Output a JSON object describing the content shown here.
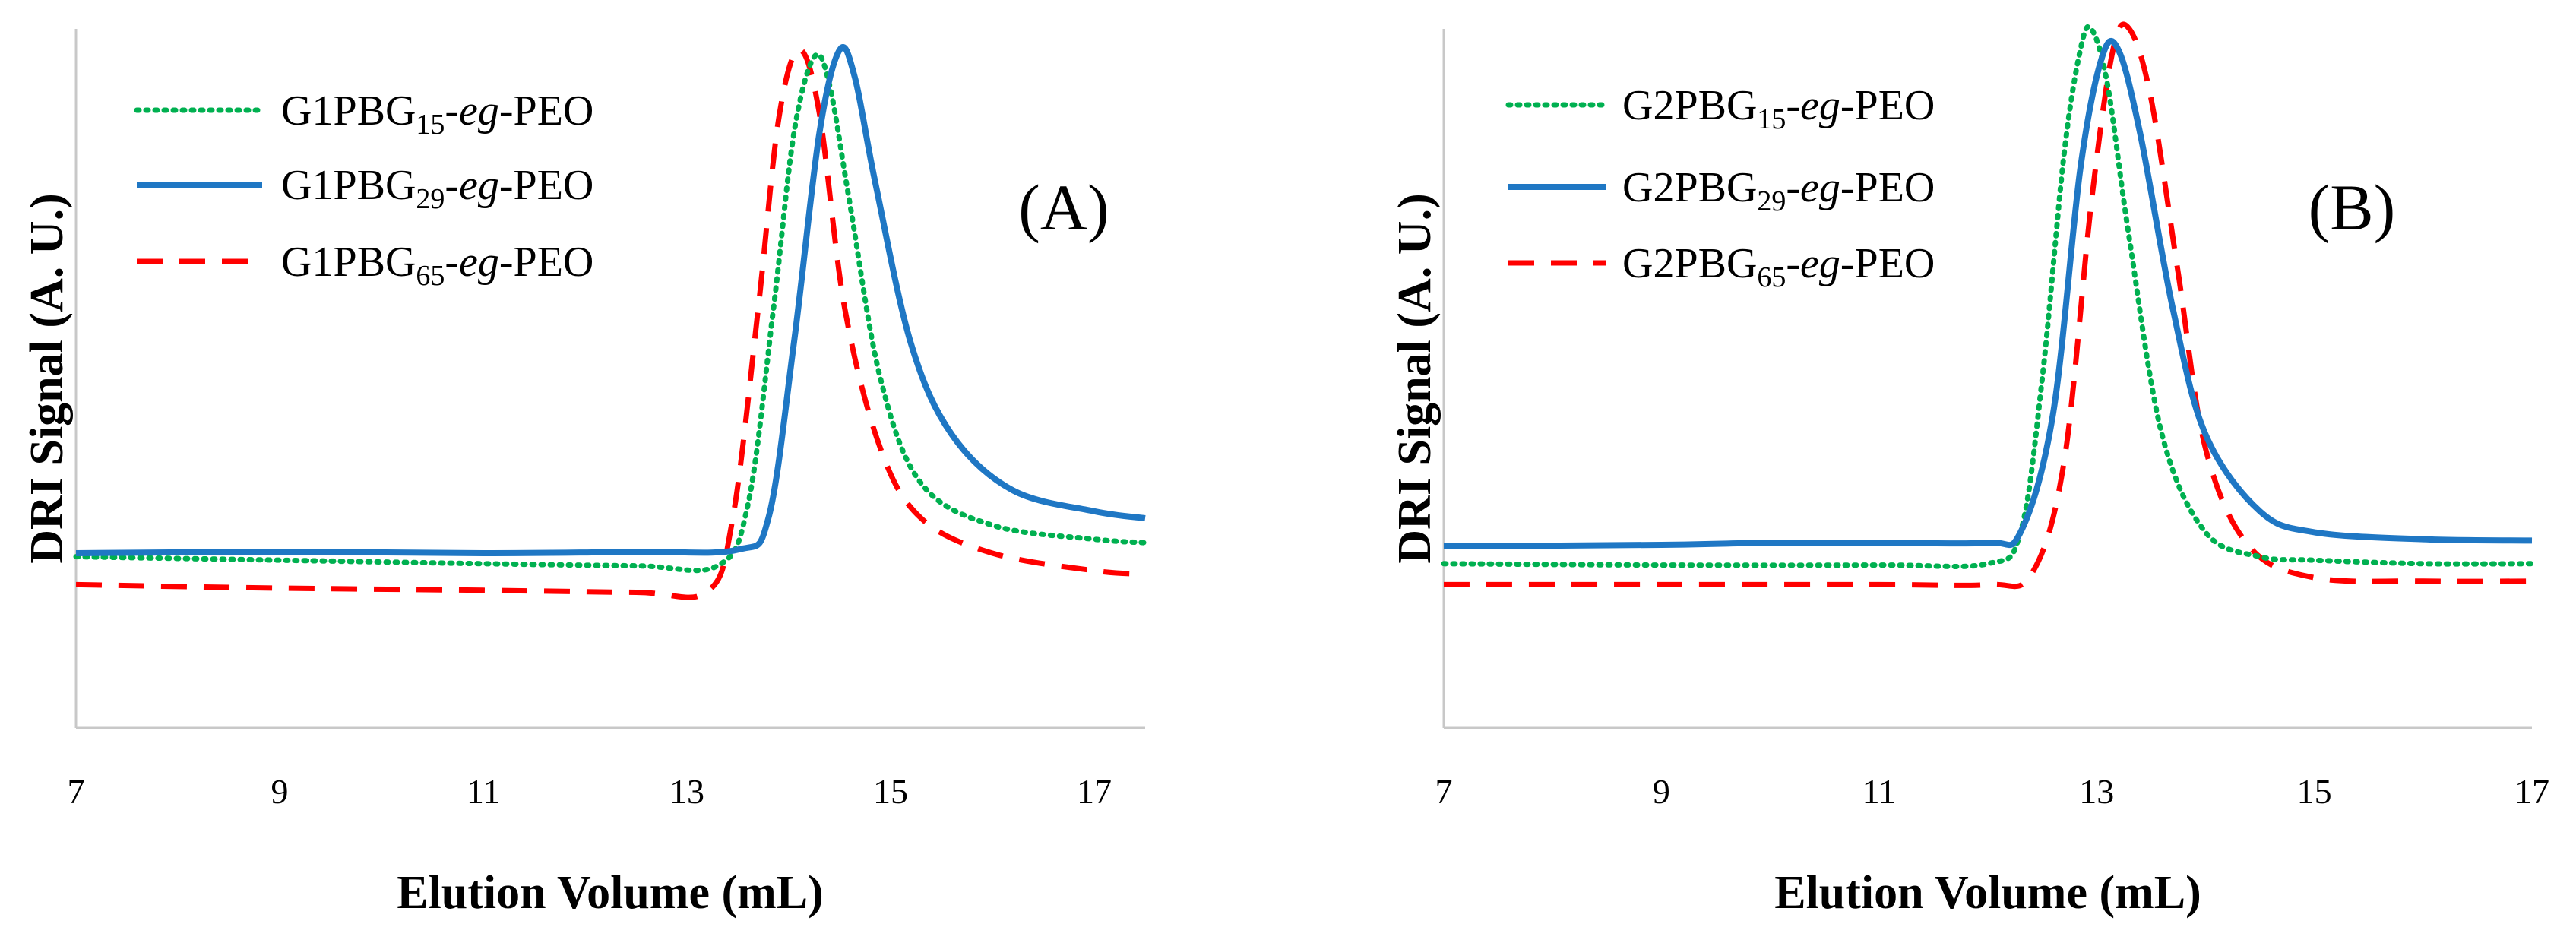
{
  "chart_data": [
    {
      "type": "line",
      "panel_label": "(A)",
      "xlabel": "Elution Volume (mL)",
      "ylabel": "DRI Signal (A. U.)",
      "xlim": [
        7,
        17.5
      ],
      "ylim": [
        0,
        1
      ],
      "xticks": [
        7,
        9,
        11,
        13,
        15,
        17
      ],
      "legend_position": "top-left",
      "series": [
        {
          "name": "G1PBG15-eg-PEO",
          "label_prefix": "G1PBG",
          "label_sub": "15",
          "label_italic": "eg",
          "label_suffix": "-PEO",
          "color": "#00b050",
          "style": "dotted",
          "x": [
            7,
            9,
            11,
            12.5,
            13.3,
            13.6,
            13.85,
            14.05,
            14.25,
            14.4,
            14.6,
            14.9,
            15.3,
            16,
            17,
            17.5
          ],
          "y": [
            0.245,
            0.24,
            0.235,
            0.232,
            0.232,
            0.32,
            0.6,
            0.85,
            0.96,
            0.92,
            0.75,
            0.5,
            0.35,
            0.29,
            0.27,
            0.265
          ]
        },
        {
          "name": "G1PBG29-eg-PEO",
          "label_prefix": "G1PBG",
          "label_sub": "29",
          "label_italic": "eg",
          "label_suffix": "-PEO",
          "color": "#1f77c4",
          "style": "solid",
          "x": [
            7,
            9,
            11,
            12.5,
            13.5,
            13.8,
            14.05,
            14.3,
            14.5,
            14.65,
            14.85,
            15.2,
            15.6,
            16.2,
            17,
            17.5
          ],
          "y": [
            0.25,
            0.252,
            0.25,
            0.252,
            0.255,
            0.3,
            0.55,
            0.85,
            0.97,
            0.93,
            0.78,
            0.55,
            0.42,
            0.34,
            0.31,
            0.3
          ]
        },
        {
          "name": "G1PBG65-eg-PEO",
          "label_prefix": "G1PBG",
          "label_sub": "65",
          "label_italic": "eg",
          "label_suffix": "-PEO",
          "color": "#ff0000",
          "style": "dashed",
          "x": [
            7,
            9,
            11,
            12.5,
            13.2,
            13.45,
            13.7,
            13.9,
            14.1,
            14.3,
            14.55,
            14.9,
            15.3,
            16,
            17,
            17.5
          ],
          "y": [
            0.205,
            0.2,
            0.197,
            0.194,
            0.195,
            0.3,
            0.6,
            0.87,
            0.97,
            0.88,
            0.6,
            0.4,
            0.3,
            0.25,
            0.225,
            0.22
          ]
        }
      ]
    },
    {
      "type": "line",
      "panel_label": "(B)",
      "xlabel": "Elution Volume (mL)",
      "ylabel": "DRI Signal (A. U.)",
      "xlim": [
        7,
        17
      ],
      "ylim": [
        0,
        1
      ],
      "xticks": [
        7,
        9,
        11,
        13,
        15,
        17
      ],
      "legend_position": "top-left",
      "series": [
        {
          "name": "G2PBG15-eg-PEO",
          "label_prefix": "G2PBG",
          "label_sub": "15",
          "label_italic": "eg",
          "label_suffix": "-PEO",
          "color": "#00b050",
          "style": "dotted",
          "x": [
            7,
            9,
            11,
            12,
            12.3,
            12.5,
            12.7,
            12.85,
            12.95,
            13.1,
            13.3,
            13.6,
            14,
            14.5,
            15,
            16,
            17
          ],
          "y": [
            0.235,
            0.233,
            0.233,
            0.235,
            0.28,
            0.5,
            0.82,
            0.97,
            1.0,
            0.92,
            0.7,
            0.42,
            0.28,
            0.245,
            0.24,
            0.235,
            0.235
          ]
        },
        {
          "name": "G2PBG29-eg-PEO",
          "label_prefix": "G2PBG",
          "label_sub": "29",
          "label_italic": "eg",
          "label_suffix": "-PEO",
          "color": "#1f77c4",
          "style": "solid",
          "x": [
            7,
            9,
            10,
            11,
            12,
            12.3,
            12.6,
            12.85,
            13.05,
            13.2,
            13.4,
            13.7,
            14,
            14.5,
            15,
            16,
            17
          ],
          "y": [
            0.26,
            0.262,
            0.265,
            0.265,
            0.265,
            0.28,
            0.45,
            0.8,
            0.96,
            0.97,
            0.85,
            0.6,
            0.42,
            0.31,
            0.28,
            0.27,
            0.268
          ]
        },
        {
          "name": "G2PBG65-eg-PEO",
          "label_prefix": "G2PBG",
          "label_sub": "65",
          "label_italic": "eg",
          "label_suffix": "-PEO",
          "color": "#ff0000",
          "style": "dashed",
          "x": [
            7,
            9,
            11,
            12,
            12.4,
            12.7,
            12.95,
            13.15,
            13.3,
            13.5,
            13.75,
            14,
            14.4,
            15,
            16,
            17
          ],
          "y": [
            0.205,
            0.205,
            0.205,
            0.205,
            0.22,
            0.38,
            0.75,
            0.97,
            1.0,
            0.9,
            0.65,
            0.4,
            0.26,
            0.215,
            0.21,
            0.21
          ]
        }
      ]
    }
  ]
}
